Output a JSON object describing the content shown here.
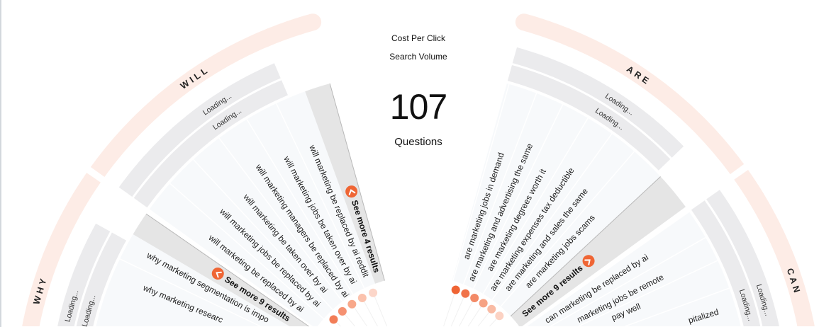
{
  "header": {
    "cost_per_click": "Cost Per Click",
    "search_volume": "Search Volume",
    "count": "107",
    "count_label": "Questions"
  },
  "colors": {
    "ring": "#fdece6",
    "sector": "#f7f9fb",
    "loading_band": "#ebebed",
    "see_more_band": "#e5e5e5",
    "accent": "#ef6534"
  },
  "groups": [
    {
      "label": "WILL",
      "loading": [
        "Loading...",
        "Loading..."
      ],
      "see_more": "See more 4 results",
      "see_more_icon": "chevron-circle-icon",
      "items": [
        {
          "text": "will marketing be replaced by ai reddit",
          "dot_color": "#fcd6c9"
        },
        {
          "text": "will marketing jobs be taken over by ai",
          "dot_color": "#fbc2ad"
        },
        {
          "text": "will marketing managers be replaced by ai",
          "dot_color": "#f8a88a"
        },
        {
          "text": "will marketing be taken over by ai",
          "dot_color": "#f59171"
        },
        {
          "text": "will marketing jobs be replaced by ai",
          "dot_color": "#f27d57"
        },
        {
          "text": "will marketing be replaced by ai",
          "dot_color": "#ef6a40"
        }
      ]
    },
    {
      "label": "WHY",
      "loading": [
        "Loading...",
        "Loading..."
      ],
      "see_more": "See more 9 results",
      "see_more_icon": "chevron-circle-icon",
      "items": [
        {
          "text": "why marketing segmentation is impo",
          "dot_color": "#ee6030"
        },
        {
          "text": "why marketing researc",
          "dot_color": "#ec5a2a"
        }
      ]
    },
    {
      "label": "ARE",
      "loading": [
        "Loading...",
        "Loading..."
      ],
      "see_more": "See more 9 results",
      "see_more_icon": "chevron-circle-icon",
      "items": [
        {
          "text": "are marketing jobs in demand",
          "dot_color": "#ef6434"
        },
        {
          "text": "are marketing and advertising the same",
          "dot_color": "#f0734a"
        },
        {
          "text": "are marketing degrees worth it",
          "dot_color": "#f38a67"
        },
        {
          "text": "are marketing expenses tax deductible",
          "dot_color": "#f6a283"
        },
        {
          "text": "are marketing and sales the same",
          "dot_color": "#f9bba4"
        },
        {
          "text": "are marketing jobs scams",
          "dot_color": "#fcd2c3"
        }
      ]
    },
    {
      "label": "CAN",
      "loading": [
        "Loading...",
        "Loading..."
      ],
      "items": [
        {
          "text": "can marketing be replaced by ai",
          "dot_color": "#ef6434"
        },
        {
          "text": "marketing jobs be remote",
          "dot_color": "#f0734a"
        },
        {
          "text": "pay well",
          "dot_color": "#f38a67"
        },
        {
          "text": "pitalized",
          "dot_color": "#f6a283"
        }
      ]
    }
  ]
}
